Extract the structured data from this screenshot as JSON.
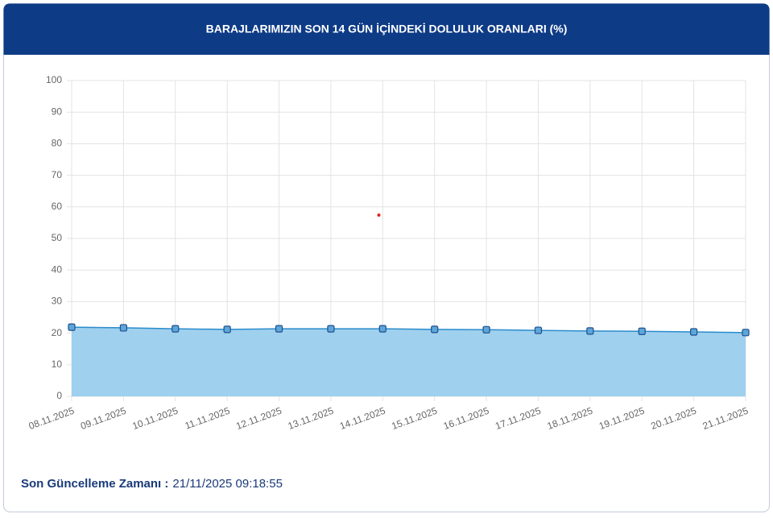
{
  "chart_data": {
    "type": "area",
    "title": "BARAJLARIMIZIN SON 14 GÜN İÇİNDEKİ DOLULUK ORANLARI (%)",
    "categories": [
      "08.11.2025",
      "09.11.2025",
      "10.11.2025",
      "11.11.2025",
      "12.11.2025",
      "13.11.2025",
      "14.11.2025",
      "15.11.2025",
      "16.11.2025",
      "17.11.2025",
      "18.11.2025",
      "19.11.2025",
      "20.11.2025",
      "21.11.2025"
    ],
    "values": [
      21.9,
      21.7,
      21.4,
      21.2,
      21.4,
      21.4,
      21.4,
      21.2,
      21.1,
      20.9,
      20.7,
      20.6,
      20.4,
      20.2
    ],
    "color": "#2b8ccc",
    "fill": "#9fd0ee",
    "marker_color": "#5ea6da",
    "ylim": [
      0,
      100
    ],
    "yticks": [
      0,
      10,
      20,
      30,
      40,
      50,
      60,
      70,
      80,
      90,
      100
    ],
    "grid": true
  },
  "footer": {
    "label": "Son Güncelleme Zamanı :",
    "value": "21/11/2025 09:18:55"
  }
}
